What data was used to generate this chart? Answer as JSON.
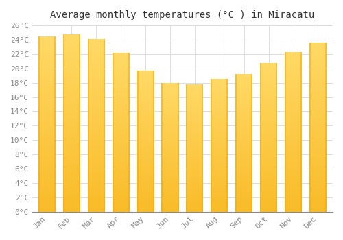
{
  "title": "Average monthly temperatures (°C ) in Miracatu",
  "months": [
    "Jan",
    "Feb",
    "Mar",
    "Apr",
    "May",
    "Jun",
    "Jul",
    "Aug",
    "Sep",
    "Oct",
    "Nov",
    "Dec"
  ],
  "values": [
    24.5,
    24.8,
    24.1,
    22.2,
    19.7,
    18.0,
    17.8,
    18.5,
    19.2,
    20.7,
    22.3,
    23.6
  ],
  "bar_color_dark": "#F5A800",
  "bar_color_light": "#FFD966",
  "ylim": [
    0,
    26
  ],
  "ytick_step": 2,
  "background_color": "#FFFFFF",
  "grid_color": "#DDDDDD",
  "title_fontsize": 10,
  "tick_fontsize": 8,
  "font_family": "monospace"
}
